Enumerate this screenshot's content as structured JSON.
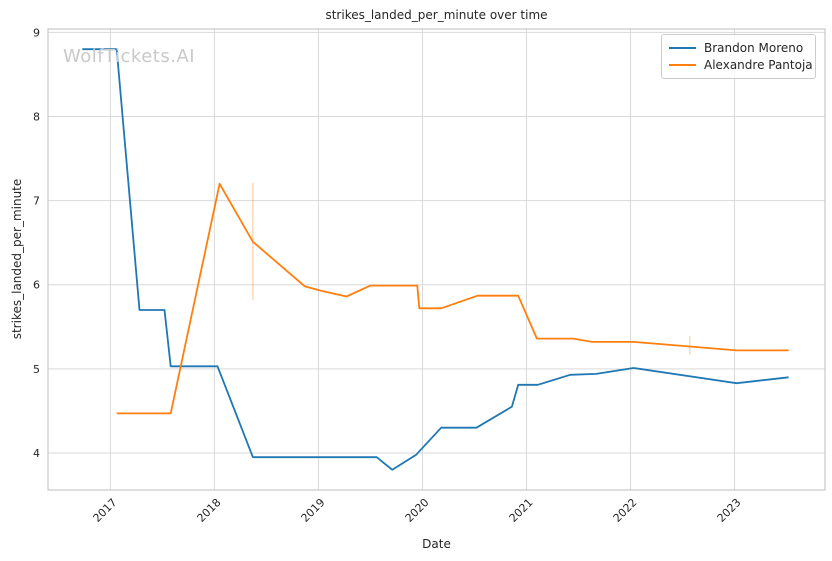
{
  "figure": {
    "title": "strikes_landed_per_minute over time",
    "watermark": "WolfTickets.AI",
    "xlabel": "Date",
    "ylabel": "strikes_landed_per_minute"
  },
  "legend": [
    {
      "label": "Brandon Moreno",
      "color": "#1f77b4"
    },
    {
      "label": "Alexandre Pantoja",
      "color": "#ff7f0e"
    }
  ],
  "colors": {
    "background": "#ffffff",
    "grid": "#d9d9d9",
    "spine": "#c7c7c7",
    "text": "#262626",
    "watermark": "#c9c9c9",
    "legend_border": "#cccccc",
    "series_blue": "#1f77b4",
    "series_orange": "#ff7f0e"
  },
  "chart_data": {
    "type": "line",
    "title": "strikes_landed_per_minute over time",
    "xlabel": "Date",
    "ylabel": "strikes_landed_per_minute",
    "x_ticks": [
      2017,
      2018,
      2019,
      2020,
      2021,
      2022,
      2023
    ],
    "y_ticks": [
      4,
      5,
      6,
      7,
      8,
      9
    ],
    "x_range": [
      2016.4,
      2023.87
    ],
    "y_range": [
      3.56,
      9.04
    ],
    "grid": true,
    "legend_position": "upper right",
    "series": [
      {
        "name": "Brandon Moreno",
        "color": "#1f77b4",
        "points": [
          [
            2016.73,
            8.8
          ],
          [
            2017.06,
            8.8
          ],
          [
            2017.28,
            5.7
          ],
          [
            2017.52,
            5.7
          ],
          [
            2017.58,
            5.03
          ],
          [
            2018.03,
            5.03
          ],
          [
            2018.37,
            3.95
          ],
          [
            2019.56,
            3.95
          ],
          [
            2019.71,
            3.8
          ],
          [
            2019.94,
            3.98
          ],
          [
            2020.18,
            4.3
          ],
          [
            2020.52,
            4.3
          ],
          [
            2020.86,
            4.55
          ],
          [
            2020.92,
            4.81
          ],
          [
            2021.11,
            4.81
          ],
          [
            2021.42,
            4.93
          ],
          [
            2021.67,
            4.94
          ],
          [
            2022.03,
            5.01
          ],
          [
            2023.02,
            4.83
          ],
          [
            2023.52,
            4.9
          ]
        ],
        "error_bars": []
      },
      {
        "name": "Alexandre Pantoja",
        "color": "#ff7f0e",
        "points": [
          [
            2017.06,
            4.47
          ],
          [
            2017.58,
            4.47
          ],
          [
            2018.05,
            7.2
          ],
          [
            2018.37,
            6.51
          ],
          [
            2018.87,
            5.98
          ],
          [
            2019.02,
            5.93
          ],
          [
            2019.27,
            5.86
          ],
          [
            2019.5,
            5.99
          ],
          [
            2019.95,
            5.99
          ],
          [
            2019.97,
            5.72
          ],
          [
            2020.18,
            5.72
          ],
          [
            2020.53,
            5.87
          ],
          [
            2020.92,
            5.87
          ],
          [
            2021.1,
            5.36
          ],
          [
            2021.45,
            5.36
          ],
          [
            2021.63,
            5.32
          ],
          [
            2022.03,
            5.32
          ],
          [
            2023.02,
            5.22
          ],
          [
            2023.52,
            5.22
          ]
        ],
        "error_bars": [
          {
            "x": 2018.37,
            "low": 5.82,
            "high": 7.21
          },
          {
            "x": 2022.57,
            "low": 5.17,
            "high": 5.39
          }
        ]
      }
    ]
  }
}
